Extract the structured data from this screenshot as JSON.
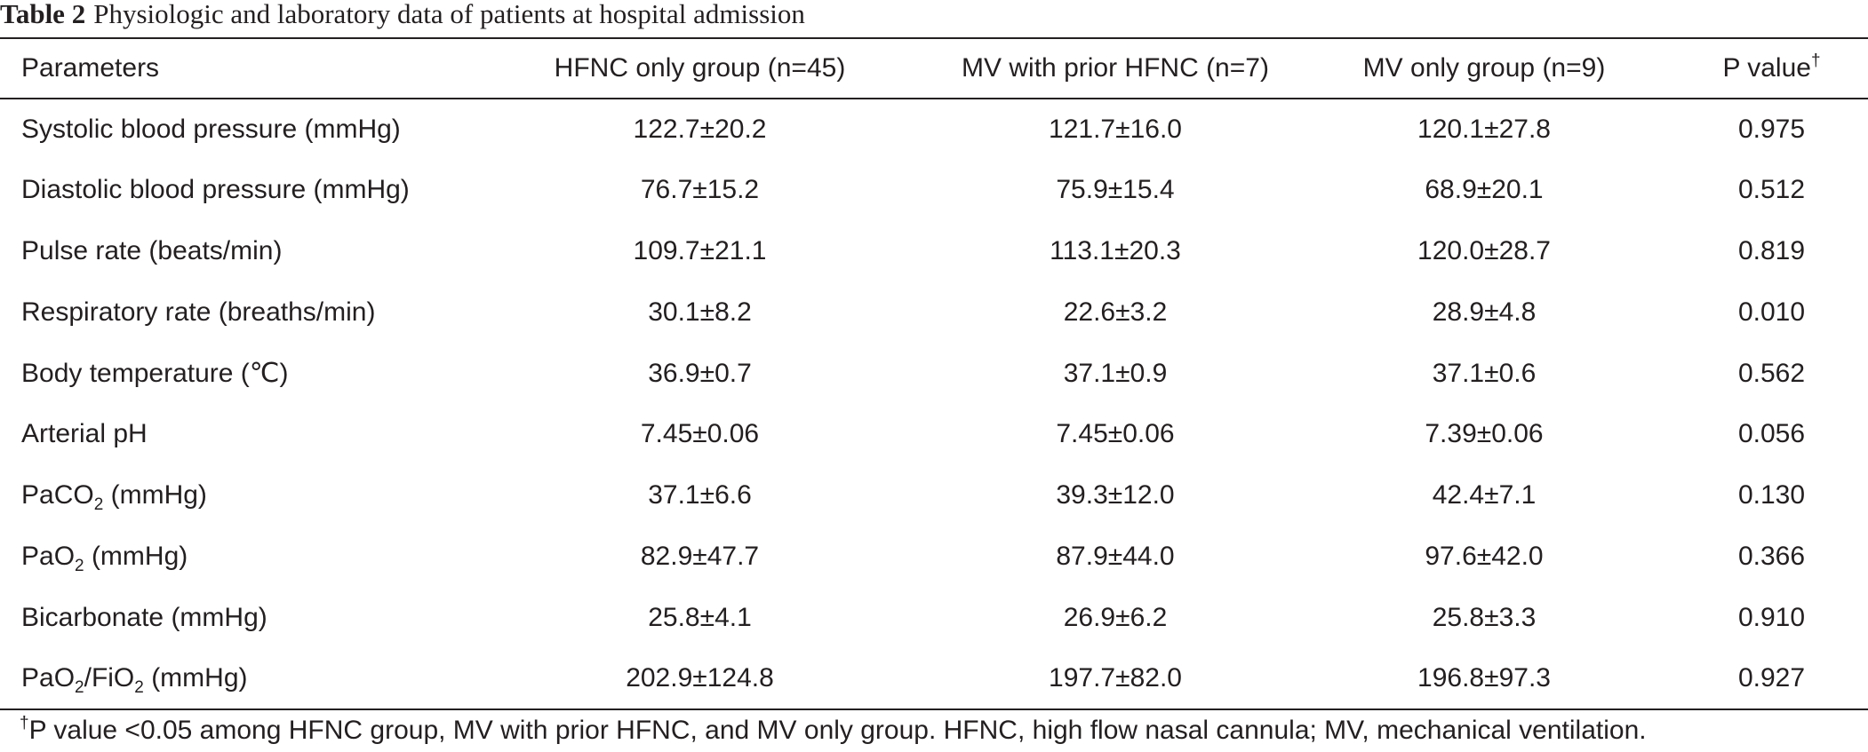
{
  "caption": {
    "label": "Table 2",
    "text": "Physiologic and laboratory data of patients at hospital admission"
  },
  "table": {
    "headers": [
      "Parameters",
      "HFNC only group (n=45)",
      "MV with prior HFNC (n=7)",
      "MV only group (n=9)",
      "P value"
    ],
    "header_p_mark": "†",
    "rows": [
      {
        "parameter": "Systolic blood pressure (mmHg)",
        "hfnc": "122.7±20.2",
        "mv_prior": "121.7±16.0",
        "mv_only": "120.1±27.8",
        "p": "0.975"
      },
      {
        "parameter": "Diastolic blood pressure (mmHg)",
        "hfnc": "76.7±15.2",
        "mv_prior": "75.9±15.4",
        "mv_only": "68.9±20.1",
        "p": "0.512"
      },
      {
        "parameter": "Pulse rate (beats/min)",
        "hfnc": "109.7±21.1",
        "mv_prior": "113.1±20.3",
        "mv_only": "120.0±28.7",
        "p": "0.819"
      },
      {
        "parameter": "Respiratory rate (breaths/min)",
        "hfnc": "30.1±8.2",
        "mv_prior": "22.6±3.2",
        "mv_only": "28.9±4.8",
        "p": "0.010"
      },
      {
        "parameter": "Body temperature (℃)",
        "hfnc": "36.9±0.7",
        "mv_prior": "37.1±0.9",
        "mv_only": "37.1±0.6",
        "p": "0.562"
      },
      {
        "parameter": "Arterial pH",
        "hfnc": "7.45±0.06",
        "mv_prior": "7.45±0.06",
        "mv_only": "7.39±0.06",
        "p": "0.056"
      },
      {
        "param_parts": [
          "PaCO",
          "2",
          " (mmHg)"
        ],
        "hfnc": "37.1±6.6",
        "mv_prior": "39.3±12.0",
        "mv_only": "42.4±7.1",
        "p": "0.130"
      },
      {
        "param_parts": [
          "PaO",
          "2",
          " (mmHg)"
        ],
        "hfnc": "82.9±47.7",
        "mv_prior": "87.9±44.0",
        "mv_only": "97.6±42.0",
        "p": "0.366"
      },
      {
        "parameter": "Bicarbonate (mmHg)",
        "hfnc": "25.8±4.1",
        "mv_prior": "26.9±6.2",
        "mv_only": "25.8±3.3",
        "p": "0.910"
      },
      {
        "param_parts": [
          "PaO",
          "2",
          "/FiO",
          "2",
          " (mmHg)"
        ],
        "hfnc": "202.9±124.8",
        "mv_prior": "197.7±82.0",
        "mv_only": "196.8±97.3",
        "p": "0.927"
      }
    ]
  },
  "footnote": {
    "mark": "†",
    "text": "P value <0.05 among HFNC group, MV with prior HFNC, and MV only group. HFNC, high flow nasal cannula; MV, mechanical ventilation."
  }
}
